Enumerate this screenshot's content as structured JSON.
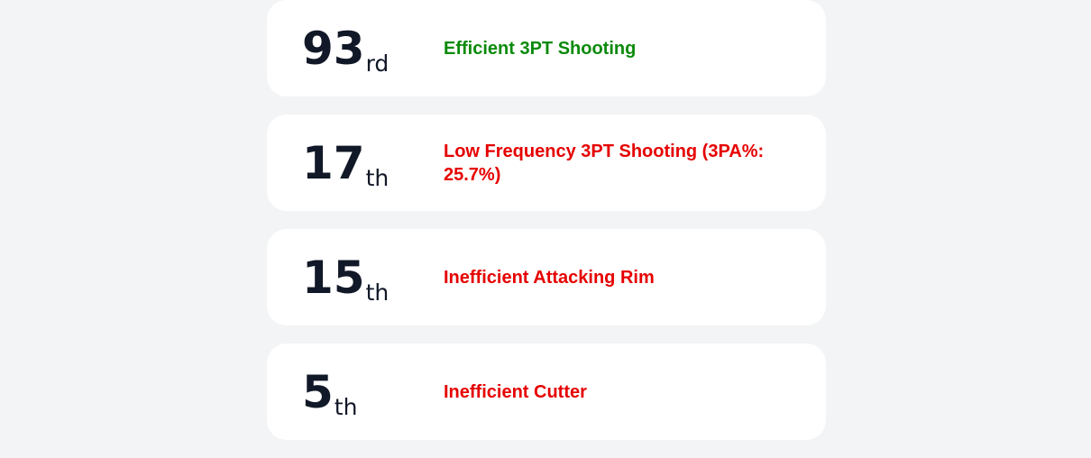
{
  "colors": {
    "background": "#f3f4f6",
    "card": "#ffffff",
    "rank_text": "#111827",
    "positive": "#0a8a0a",
    "negative": "#e60000"
  },
  "cards": [
    {
      "rank": "93",
      "suffix": "rd",
      "label": "Efficient 3PT Shooting",
      "tone": "positive"
    },
    {
      "rank": "17",
      "suffix": "th",
      "label": "Low Frequency 3PT Shooting (3PA%: 25.7%)",
      "tone": "negative"
    },
    {
      "rank": "15",
      "suffix": "th",
      "label": "Inefficient Attacking Rim",
      "tone": "negative"
    },
    {
      "rank": "5",
      "suffix": "th",
      "label": "Inefficient Cutter",
      "tone": "negative"
    }
  ]
}
